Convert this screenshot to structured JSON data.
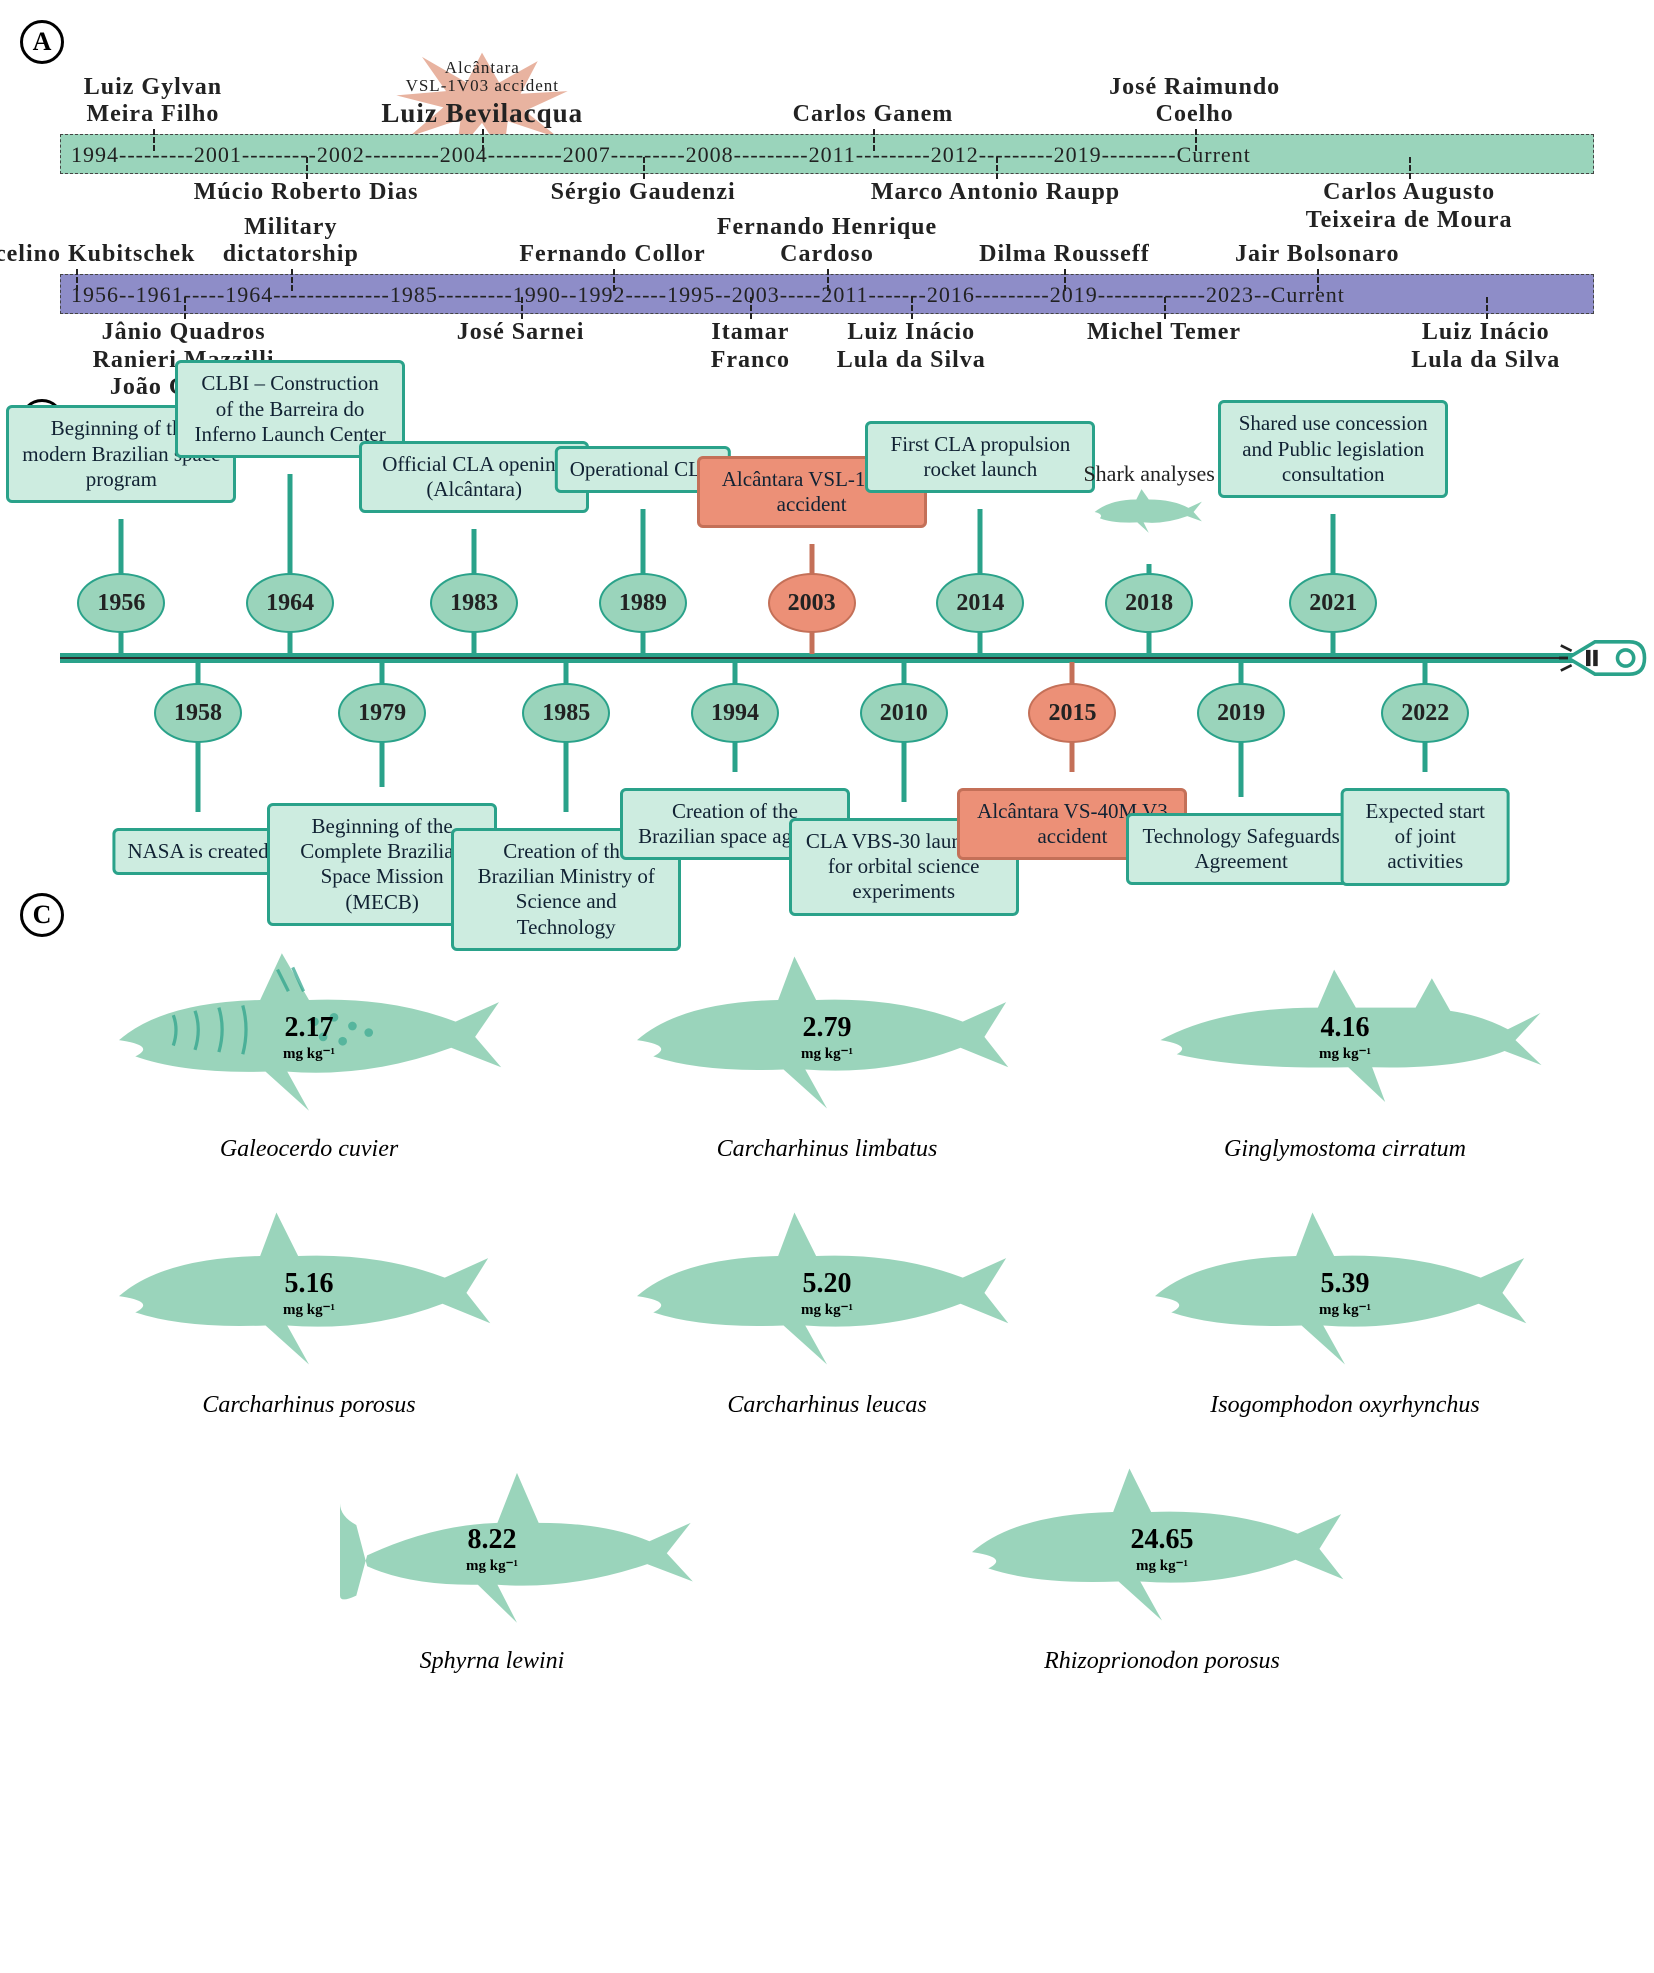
{
  "colors": {
    "teal_fill": "#9ad4bb",
    "teal_stroke": "#2aa28a",
    "purple_fill": "#8e8dc8",
    "orange_fill": "#ec9077",
    "orange_stroke": "#c47058",
    "burst": "#e8b3a0",
    "text": "#222222",
    "axis": "#2c2c2c"
  },
  "panelA": {
    "label": "A",
    "greenTimeline": {
      "raw": "1994---------2001---------2002---------2004---------2007---------2008---------2011---------2012---------2019---------Current",
      "events_up": [
        {
          "text": "Luiz Gylvan\nMeira Filho",
          "pos_pct": 6
        },
        {
          "text": "Luiz Bevilacqua",
          "pos_pct": 27.5,
          "burst": true,
          "burst_top": "Alcântara\nVSL-1V03 accident"
        },
        {
          "text": "Carlos Ganem",
          "pos_pct": 53
        },
        {
          "text": "José Raimundo\nCoelho",
          "pos_pct": 74
        }
      ],
      "events_down": [
        {
          "text": "Múcio Roberto Dias",
          "pos_pct": 16
        },
        {
          "text": "Sérgio Gaudenzi",
          "pos_pct": 38
        },
        {
          "text": "Marco Antonio Raupp",
          "pos_pct": 61
        },
        {
          "text": "Carlos Augusto\nTeixeira de Moura",
          "pos_pct": 88
        }
      ]
    },
    "purpleTimeline": {
      "raw": "1956--1961-----1964--------------1985---------1990--1992-----1995--2003-----2011-------2016---------2019-------------2023--Current",
      "events_up": [
        {
          "text": "Juscelino Kubitschek",
          "pos_pct": 1
        },
        {
          "text": "Military\ndictatorship",
          "pos_pct": 15
        },
        {
          "text": "Fernando Collor",
          "pos_pct": 36
        },
        {
          "text": "Fernando Henrique\nCardoso",
          "pos_pct": 50
        },
        {
          "text": "Dilma Rousseff",
          "pos_pct": 65.5
        },
        {
          "text": "Jair Bolsonaro",
          "pos_pct": 82
        }
      ],
      "events_down": [
        {
          "text": "Jânio Quadros\nRanieri Mazzilli\nJoão Goulart",
          "pos_pct": 8
        },
        {
          "text": "José Sarnei",
          "pos_pct": 30
        },
        {
          "text": "Itamar\nFranco",
          "pos_pct": 45
        },
        {
          "text": "Luiz Inácio\nLula da Silva",
          "pos_pct": 55.5
        },
        {
          "text": "Michel Temer",
          "pos_pct": 72
        },
        {
          "text": "Luiz Inácio\nLula da Silva",
          "pos_pct": 93
        }
      ]
    }
  },
  "panelB": {
    "label": "B",
    "axis_start": 1956,
    "axis_end": 2023,
    "shark_annotation": "Shark analyses",
    "events_up": [
      {
        "year": "1956",
        "pos_pct": 4,
        "stem": 105,
        "color": "green",
        "text": "Beginning of the modern Brazilian space program"
      },
      {
        "year": "1964",
        "pos_pct": 15,
        "stem": 150,
        "color": "green",
        "text": "CLBI – Construction of the Barreira do Inferno Launch Center"
      },
      {
        "year": "1983",
        "pos_pct": 27,
        "stem": 95,
        "color": "green",
        "text": "Official CLA opening (Alcântara)"
      },
      {
        "year": "1989",
        "pos_pct": 38,
        "stem": 115,
        "color": "green",
        "text": "Operational CLA"
      },
      {
        "year": "2003",
        "pos_pct": 49,
        "stem": 80,
        "color": "orange",
        "text": "Alcântara VSL-1V03 accident"
      },
      {
        "year": "2014",
        "pos_pct": 60,
        "stem": 115,
        "color": "green",
        "text": "First CLA propulsion rocket launch"
      },
      {
        "year": "2018",
        "pos_pct": 71,
        "stem": 60,
        "color": "green",
        "text": "",
        "shark": true
      },
      {
        "year": "2021",
        "pos_pct": 83,
        "stem": 110,
        "color": "green",
        "text": "Shared use concession and Public legislation consultation"
      }
    ],
    "events_down": [
      {
        "year": "1958",
        "pos_pct": 9,
        "stem": 120,
        "color": "green",
        "text": "NASA is created"
      },
      {
        "year": "1979",
        "pos_pct": 21,
        "stem": 95,
        "color": "green",
        "text": "Beginning of the Complete Brazilian Space Mission (MECB)"
      },
      {
        "year": "1985",
        "pos_pct": 33,
        "stem": 120,
        "color": "green",
        "text": "Creation of the Brazilian Ministry of Science and Technology"
      },
      {
        "year": "1994",
        "pos_pct": 44,
        "stem": 80,
        "color": "green",
        "text": "Creation of the Brazilian space agency"
      },
      {
        "year": "2010",
        "pos_pct": 55,
        "stem": 110,
        "color": "green",
        "text": "CLA VBS-30 launched for orbital science experiments"
      },
      {
        "year": "2015",
        "pos_pct": 66,
        "stem": 80,
        "color": "orange",
        "text": "Alcântara VS-40M V3 accident"
      },
      {
        "year": "2019",
        "pos_pct": 77,
        "stem": 105,
        "color": "green",
        "text": "Technology Safeguards Agreement"
      },
      {
        "year": "2022",
        "pos_pct": 89,
        "stem": 80,
        "color": "green",
        "text": "Expected start of joint activities"
      }
    ]
  },
  "panelC": {
    "label": "C",
    "unit": "mg kg⁻¹",
    "sharks": [
      {
        "species": "Galeocerdo cuvier",
        "value": "2.17",
        "shape": "tiger"
      },
      {
        "species": "Carcharhinus limbatus",
        "value": "2.79",
        "shape": "requiem"
      },
      {
        "species": "Ginglymostoma cirratum",
        "value": "4.16",
        "shape": "nurse"
      },
      {
        "species": "Carcharhinus porosus",
        "value": "5.16",
        "shape": "requiem"
      },
      {
        "species": "Carcharhinus leucas",
        "value": "5.20",
        "shape": "requiem"
      },
      {
        "species": "Isogomphodon oxyrhynchus",
        "value": "5.39",
        "shape": "requiem"
      },
      {
        "species": "Sphyrna lewini",
        "value": "8.22",
        "shape": "hammer"
      },
      {
        "species": "Rhizoprionodon porosus",
        "value": "24.65",
        "shape": "requiem"
      }
    ]
  }
}
